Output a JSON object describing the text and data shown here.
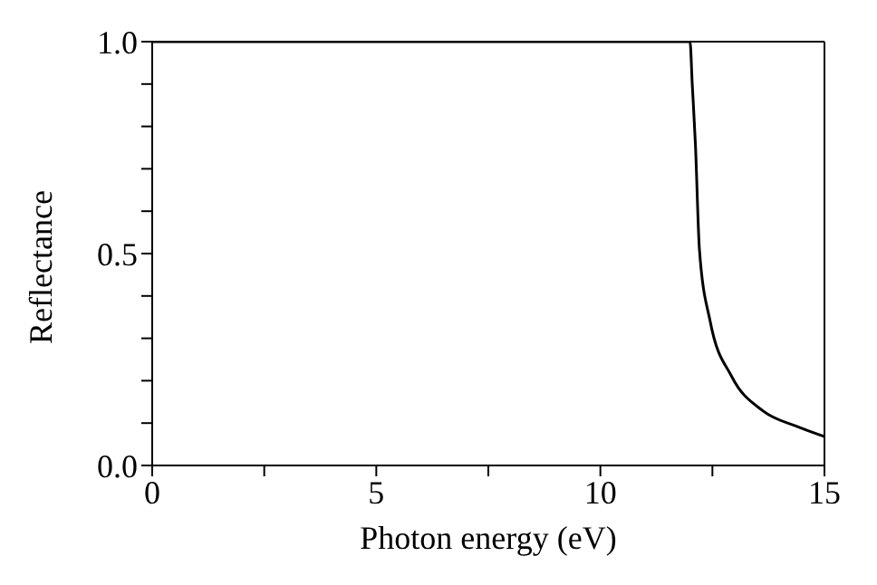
{
  "chart_data": {
    "type": "line",
    "xlabel": "Photon energy (eV)",
    "ylabel": "Reflectance",
    "x": [
      0,
      12.0,
      12.05,
      12.12,
      12.21,
      12.45,
      12.93,
      13.64,
      14.36,
      15
    ],
    "series": [
      {
        "color": "#000000",
        "values": [
          1,
          1,
          0.9,
          0.76,
          0.51,
          0.34,
          0.21,
          0.128,
          0.093,
          0.068
        ]
      }
    ],
    "xlim": [
      0,
      15
    ],
    "xticks": [
      0,
      {
        "value": 2.5,
        "label": null
      },
      5,
      {
        "value": 7.5,
        "label": null
      },
      10,
      {
        "value": 12.5,
        "label": null
      },
      15
    ],
    "ylim": [
      0,
      1
    ],
    "yticks": [
      {
        "value": 0,
        "label": "0.0"
      },
      {
        "value": 0.1,
        "label": null
      },
      {
        "value": 0.2,
        "label": null
      },
      {
        "value": 0.3,
        "label": null
      },
      {
        "value": 0.4,
        "label": null
      },
      {
        "value": 0.5,
        "label": "0.5"
      },
      {
        "value": 0.6,
        "label": null
      },
      {
        "value": 0.7,
        "label": null
      },
      {
        "value": 0.8,
        "label": null
      },
      {
        "value": 0.9,
        "label": null
      },
      {
        "value": 1,
        "label": "1.0"
      }
    ],
    "grid": false,
    "legend": false,
    "marker": "none",
    "line_style": "solid"
  }
}
